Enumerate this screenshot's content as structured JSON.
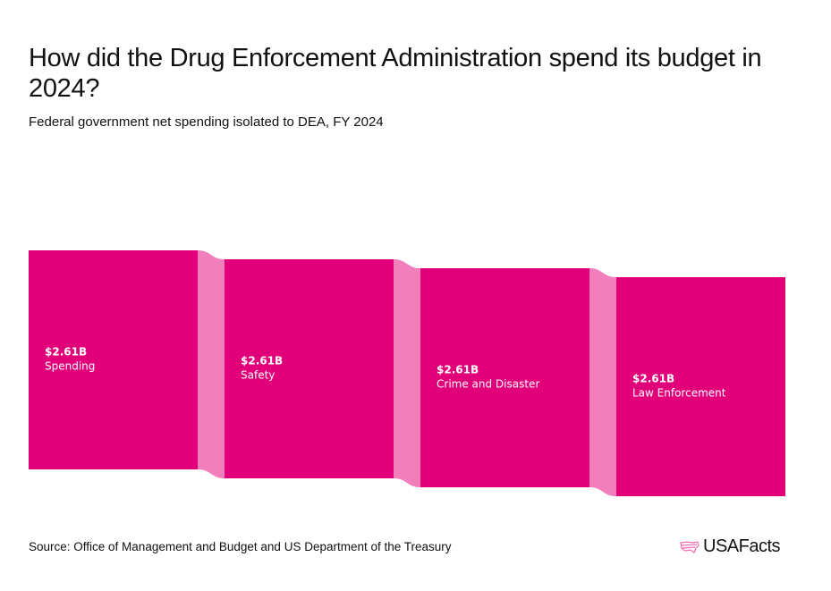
{
  "title": "How did the Drug Enforcement Administration spend its budget in 2024?",
  "subtitle": "Federal government net spending isolated to DEA, FY 2024",
  "source": "Source: Office of Management and Budget and US Department of the Treasury",
  "logo": "USAFacts",
  "colors": {
    "node": "#e2007a",
    "link": "#f17fbc"
  },
  "chart_data": {
    "type": "sankey",
    "unit": "USD billions",
    "nodes": [
      {
        "name": "Spending",
        "value": 2.61,
        "value_label": "$2.61B"
      },
      {
        "name": "Safety",
        "value": 2.61,
        "value_label": "$2.61B"
      },
      {
        "name": "Crime and Disaster",
        "value": 2.61,
        "value_label": "$2.61B"
      },
      {
        "name": "Law Enforcement",
        "value": 2.61,
        "value_label": "$2.61B"
      }
    ],
    "links": [
      {
        "source": "Spending",
        "target": "Safety",
        "value": 2.61
      },
      {
        "source": "Safety",
        "target": "Crime and Disaster",
        "value": 2.61
      },
      {
        "source": "Crime and Disaster",
        "target": "Law Enforcement",
        "value": 2.61
      }
    ]
  }
}
